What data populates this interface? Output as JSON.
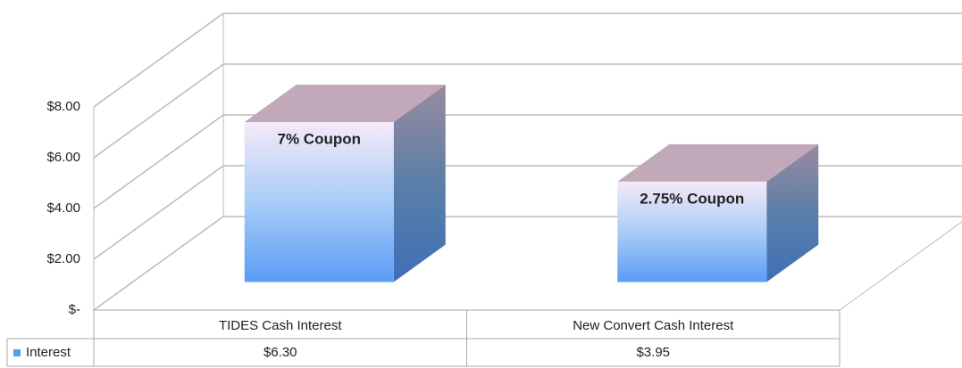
{
  "chart_data": {
    "type": "bar3d",
    "categories": [
      "TIDES Cash Interest",
      "New Convert Cash Interest"
    ],
    "series": [
      {
        "name": "Interest",
        "color": "#5b9bf5",
        "values": [
          6.3,
          3.95
        ],
        "value_labels": [
          "$6.30",
          "$3.95"
        ]
      }
    ],
    "annotations": [
      "7% Coupon",
      "2.75% Coupon"
    ],
    "ylim": [
      0,
      8
    ],
    "yticks": [
      {
        "value": 0,
        "label": "$-"
      },
      {
        "value": 2,
        "label": "$2.00"
      },
      {
        "value": 4,
        "label": "$4.00"
      },
      {
        "value": 6,
        "label": "$6.00"
      },
      {
        "value": 8,
        "label": "$8.00"
      }
    ],
    "grid": true
  }
}
